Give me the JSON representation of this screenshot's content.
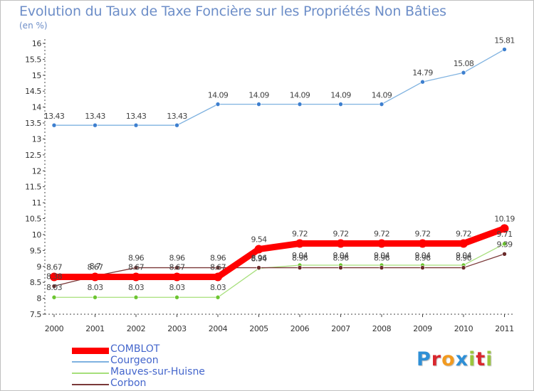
{
  "title": "Evolution du Taux de Taxe Foncière sur les Propriétés Non Bâties",
  "subtitle": "(en %)",
  "logo": {
    "letters": [
      "P",
      "r",
      "o",
      "x",
      "i",
      "t",
      "i"
    ],
    "colors": [
      "#2e8fd6",
      "#d9272e",
      "#f29a1f",
      "#2e8fd6",
      "#9bc53d",
      "#d9272e",
      "#9bc53d"
    ]
  },
  "chart_data": {
    "type": "line",
    "title": "Evolution du Taux de Taxe Foncière sur les Propriétés Non Bâties",
    "ylabel": "(en %)",
    "xlabel": "",
    "x": [
      "2000",
      "2001",
      "2002",
      "2003",
      "2004",
      "2005",
      "2006",
      "2007",
      "2008",
      "2009",
      "2010",
      "2011"
    ],
    "ylim": [
      7.5,
      16
    ],
    "yticks": [
      "7.5",
      "8",
      "8.5",
      "9",
      "9.5",
      "10",
      "10.5",
      "11",
      "11.5",
      "12",
      "12.5",
      "13",
      "13.5",
      "14",
      "14.5",
      "15",
      "15.5",
      "16"
    ],
    "grid": false,
    "legend_position": "bottom-left",
    "series": [
      {
        "name": "COMBLOT",
        "color": "#ff0000",
        "values": [
          8.67,
          8.67,
          8.67,
          8.67,
          8.67,
          9.54,
          9.72,
          9.72,
          9.72,
          9.72,
          9.72,
          10.19
        ],
        "labels": [
          "8.67",
          "8.67",
          "8.67",
          "8.67",
          "8.67",
          "9.54",
          "9.72",
          "9.72",
          "9.72",
          "9.72",
          "9.72",
          "10.19"
        ]
      },
      {
        "name": "Courgeon",
        "color": "#7fb2e0",
        "marker_color": "#3d7fcf",
        "values": [
          13.43,
          13.43,
          13.43,
          13.43,
          14.09,
          14.09,
          14.09,
          14.09,
          14.09,
          14.79,
          15.08,
          15.81
        ],
        "labels": [
          "13.43",
          "13.43",
          "13.43",
          "13.43",
          "14.09",
          "14.09",
          "14.09",
          "14.09",
          "14.09",
          "14.79",
          "15.08",
          "15.81"
        ]
      },
      {
        "name": "Mauves-sur-Huisne",
        "color": "#a6df7a",
        "marker_color": "#6cc530",
        "values": [
          8.03,
          8.03,
          8.03,
          8.03,
          8.03,
          8.94,
          9.04,
          9.04,
          9.04,
          9.04,
          9.04,
          9.71
        ],
        "labels": [
          "8.03",
          "8.03",
          "8.03",
          "8.03",
          "8.03",
          "8.94",
          "9.04",
          "9.04",
          "9.04",
          "9.04",
          "9.04",
          "9.71"
        ]
      },
      {
        "name": "Corbon",
        "color": "#7a3838",
        "marker_color": "#6a2a2a",
        "values": [
          8.38,
          8.7,
          8.96,
          8.96,
          8.96,
          8.96,
          8.96,
          8.96,
          8.96,
          8.96,
          8.96,
          9.39
        ],
        "labels": [
          "8.38",
          "8.7",
          "8.96",
          "8.96",
          "8.96",
          "8.96",
          "8.96",
          "8.96",
          "8.96",
          "8.96",
          "8.96",
          "9.39"
        ]
      }
    ]
  }
}
